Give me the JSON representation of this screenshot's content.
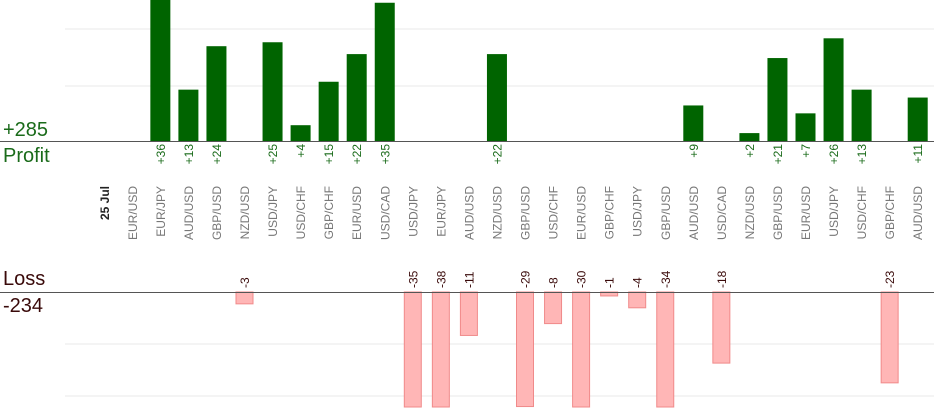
{
  "chart_data": {
    "type": "bar",
    "summary": {
      "profit_total": "+285",
      "profit_label": "Profit",
      "loss_label": "Loss",
      "loss_total": "-234"
    },
    "date_label": "25 Jul",
    "categories": [
      "EUR/USD",
      "EUR/JPY",
      "AUD/USD",
      "GBP/USD",
      "NZD/USD",
      "USD/JPY",
      "USD/CHF",
      "GBP/CHF",
      "EUR/USD",
      "USD/CAD",
      "USD/JPY",
      "EUR/JPY",
      "AUD/USD",
      "NZD/USD",
      "GBP/USD",
      "USD/CHF",
      "EUR/USD",
      "GBP/CHF",
      "USD/JPY",
      "GBP/USD",
      "AUD/USD",
      "USD/CAD",
      "NZD/USD",
      "GBP/USD",
      "EUR/USD",
      "USD/JPY",
      "USD/CHF",
      "GBP/CHF",
      "AUD/USD"
    ],
    "series": [
      {
        "name": "Profit",
        "values": [
          null,
          36,
          13,
          24,
          null,
          25,
          4,
          15,
          22,
          35,
          null,
          null,
          null,
          22,
          null,
          null,
          null,
          null,
          null,
          null,
          9,
          null,
          2,
          21,
          7,
          26,
          13,
          null,
          11
        ]
      },
      {
        "name": "Loss",
        "values": [
          null,
          null,
          null,
          null,
          -3,
          null,
          null,
          null,
          null,
          null,
          -35,
          -38,
          -11,
          null,
          -29,
          -8,
          -30,
          -1,
          -4,
          -34,
          null,
          -18,
          null,
          null,
          null,
          null,
          null,
          -23,
          null
        ]
      }
    ],
    "profit_labels": [
      "",
      "+36",
      "+13",
      "+24",
      "",
      "+25",
      "+4",
      "+15",
      "+22",
      "+35",
      "",
      "",
      "",
      "+22",
      "",
      "",
      "",
      "",
      "",
      "",
      "+9",
      "",
      "+2",
      "+21",
      "+7",
      "+26",
      "+13",
      "",
      "+11"
    ],
    "loss_labels": [
      "",
      "",
      "",
      "",
      "-3",
      "",
      "",
      "",
      "",
      "",
      "-35",
      "-38",
      "-11",
      "",
      "-29",
      "-8",
      "-30",
      "-1",
      "-4",
      "-34",
      "",
      "-18",
      "",
      "",
      "",
      "",
      "",
      "-23",
      ""
    ],
    "colors": {
      "profit_bar": "#006400",
      "loss_bar": "#ffb6b6",
      "profit_text": "#1a6b1a",
      "loss_text": "#3a0a0a",
      "category_text": "#777777",
      "grid": "#e8e8e8"
    }
  }
}
